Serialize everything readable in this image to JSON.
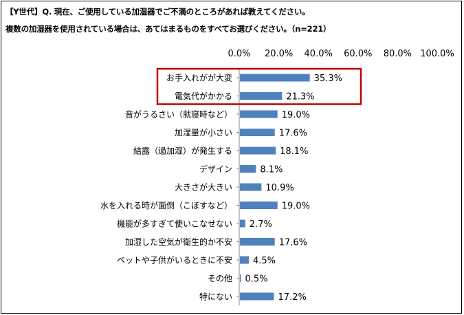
{
  "title_line1": "【Y世代】Q. 現在、ご使用している加湿器でご不満のところがあれば教えてください。",
  "title_line2": "複数の加湿器を使用されている場合は、あてはまるものをすべてお選びください。（n=221）",
  "colors": {
    "bar": "#4f81bd",
    "highlight": "#c00000"
  },
  "chart_data": {
    "type": "bar",
    "orientation": "horizontal",
    "categories": [
      "お手入れがが大変",
      "電気代がかかる",
      "音がうるさい（就寝時など）",
      "加湿量が小さい",
      "結露（過加湿）が発生する",
      "デザイン",
      "大きさが大きい",
      "水を入れる時が面倒（こぼすなど）",
      "機能が多すぎて使いこなせない",
      "加湿した空気が衛生的か不安",
      "ペットや子供がいるときに不安",
      "その他",
      "特にない"
    ],
    "values": [
      35.3,
      21.3,
      19.0,
      17.6,
      18.1,
      8.1,
      10.9,
      19.0,
      2.7,
      17.6,
      4.5,
      0.5,
      17.2
    ],
    "value_labels": [
      "35.3%",
      "21.3%",
      "19.0%",
      "17.6%",
      "18.1%",
      "8.1%",
      "10.9%",
      "19.0%",
      "2.7%",
      "17.6%",
      "4.5%",
      "0.5%",
      "17.2%"
    ],
    "xlim": [
      0,
      100
    ],
    "tick_labels": [
      "0.0%",
      "20.0%",
      "40.0%",
      "60.0%",
      "80.0%",
      "100.0%"
    ],
    "axis_position": "top",
    "grid": false,
    "highlighted_categories": [
      "お手入れがが大変",
      "電気代がかかる"
    ]
  }
}
